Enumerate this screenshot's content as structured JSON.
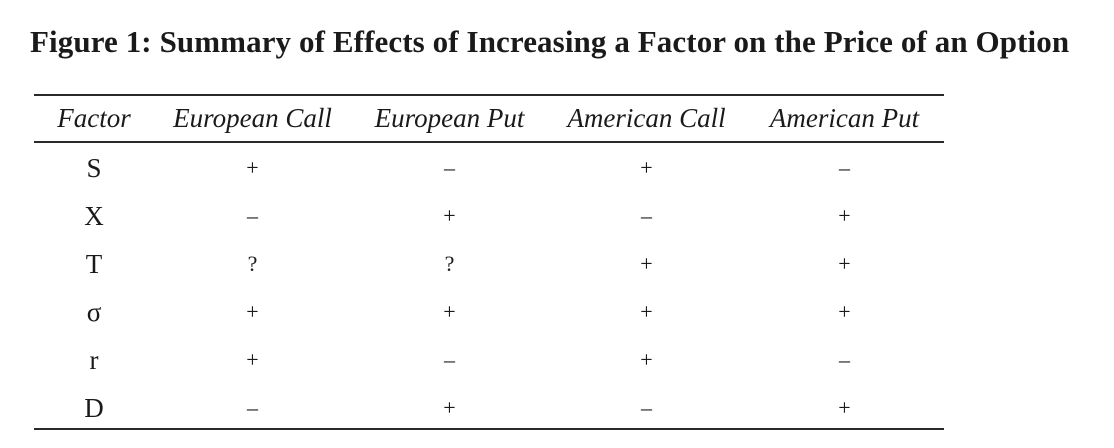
{
  "title": "Figure 1: Summary of Effects of Increasing a Factor on the Price of an Option",
  "table": {
    "headers": [
      "Factor",
      "European Call",
      "European Put",
      "American Call",
      "American Put"
    ],
    "rows": [
      [
        "S",
        "+",
        "–",
        "+",
        "–"
      ],
      [
        "X",
        "–",
        "+",
        "–",
        "+"
      ],
      [
        "T",
        "?",
        "?",
        "+",
        "+"
      ],
      [
        "σ",
        "+",
        "+",
        "+",
        "+"
      ],
      [
        "r",
        "+",
        "–",
        "+",
        "–"
      ],
      [
        "D",
        "–",
        "+",
        "–",
        "+"
      ]
    ]
  }
}
